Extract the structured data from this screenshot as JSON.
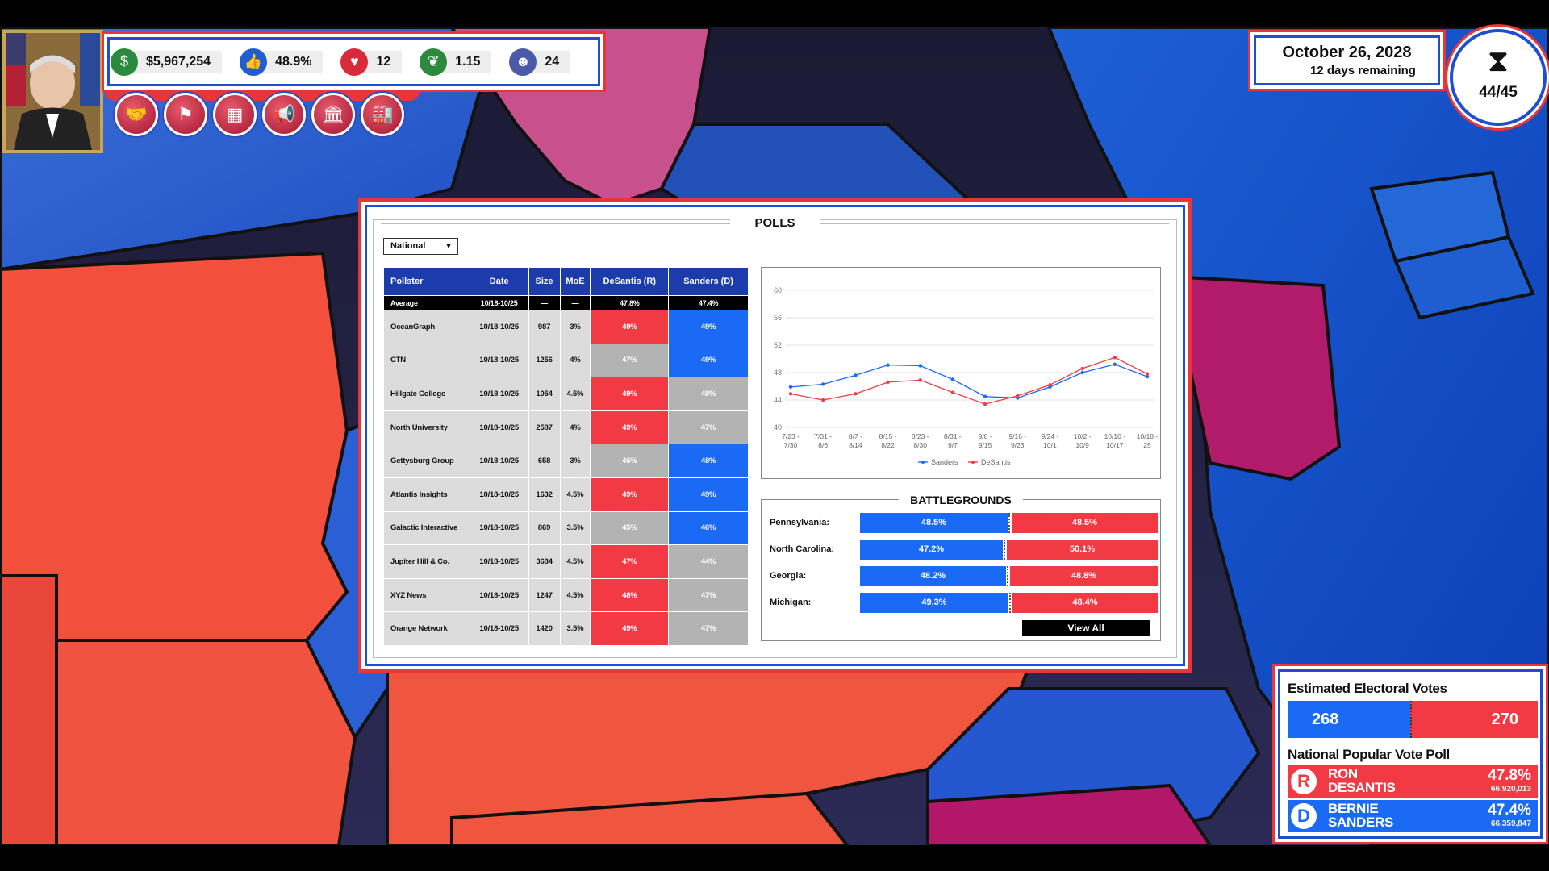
{
  "stats": {
    "money": "$5,967,254",
    "approval": "48.9%",
    "health": "12",
    "momentum": "1.15",
    "staff": "24"
  },
  "icons": {
    "money": "money-bag-icon",
    "approval": "thumbs-up-icon",
    "health": "heart-rate-icon",
    "momentum": "chili-pepper-icon",
    "staff": "people-icon",
    "actions": [
      "handshake-icon",
      "flags-icon",
      "calendar-icon",
      "megaphone-icon",
      "capitol-icon",
      "factory-icon"
    ],
    "timer": "hourglass-icon"
  },
  "date": {
    "main": "October 26, 2028",
    "sub": "12 days remaining"
  },
  "timer": {
    "value": "44/45"
  },
  "polls": {
    "title": "POLLS",
    "region": "National",
    "columns": [
      "Pollster",
      "Date",
      "Size",
      "MoE",
      "DeSantis (R)",
      "Sanders (D)"
    ],
    "average": {
      "pollster": "Average",
      "date": "10/18-10/25",
      "size": "—",
      "moe": "—",
      "r": "47.8%",
      "d": "47.4%"
    },
    "rows": [
      {
        "pollster": "OceanGraph",
        "date": "10/18-10/25",
        "size": "987",
        "moe": "3%",
        "r": "49%",
        "d": "49%",
        "rc": "r",
        "dc": "b"
      },
      {
        "pollster": "CTN",
        "date": "10/18-10/25",
        "size": "1256",
        "moe": "4%",
        "r": "47%",
        "d": "49%",
        "rc": "g",
        "dc": "b"
      },
      {
        "pollster": "Hillgate College",
        "date": "10/18-10/25",
        "size": "1054",
        "moe": "4.5%",
        "r": "49%",
        "d": "48%",
        "rc": "r",
        "dc": "g"
      },
      {
        "pollster": "North University",
        "date": "10/18-10/25",
        "size": "2587",
        "moe": "4%",
        "r": "49%",
        "d": "47%",
        "rc": "r",
        "dc": "g"
      },
      {
        "pollster": "Gettysburg Group",
        "date": "10/18-10/25",
        "size": "658",
        "moe": "3%",
        "r": "46%",
        "d": "48%",
        "rc": "g",
        "dc": "b"
      },
      {
        "pollster": "Atlantis Insights",
        "date": "10/18-10/25",
        "size": "1632",
        "moe": "4.5%",
        "r": "49%",
        "d": "49%",
        "rc": "r",
        "dc": "b"
      },
      {
        "pollster": "Galactic Interactive",
        "date": "10/18-10/25",
        "size": "869",
        "moe": "3.5%",
        "r": "45%",
        "d": "46%",
        "rc": "g",
        "dc": "b"
      },
      {
        "pollster": "Jupiter Hill & Co.",
        "date": "10/18-10/25",
        "size": "3684",
        "moe": "4.5%",
        "r": "47%",
        "d": "44%",
        "rc": "r",
        "dc": "g"
      },
      {
        "pollster": "XYZ News",
        "date": "10/18-10/25",
        "size": "1247",
        "moe": "4.5%",
        "r": "48%",
        "d": "47%",
        "rc": "r",
        "dc": "g"
      },
      {
        "pollster": "Orange Network",
        "date": "10/18-10/25",
        "size": "1420",
        "moe": "3.5%",
        "r": "49%",
        "d": "47%",
        "rc": "r",
        "dc": "g"
      }
    ]
  },
  "chart_data": {
    "type": "line",
    "x": [
      "7/23 - 7/30",
      "7/31 - 8/6",
      "8/7 - 8/14",
      "8/15 - 8/22",
      "8/23 - 8/30",
      "8/31 - 9/7",
      "9/8 - 9/15",
      "9/16 - 9/23",
      "9/24 - 10/1",
      "10/2 - 10/9",
      "10/10 - 10/17",
      "10/18 - 25"
    ],
    "series": [
      {
        "name": "Sanders",
        "color": "#1a6af5",
        "values": [
          45.9,
          46.3,
          47.6,
          49.1,
          49.0,
          47.0,
          44.5,
          44.3,
          45.9,
          48.0,
          49.2,
          47.4
        ]
      },
      {
        "name": "DeSantis",
        "color": "#f23a45",
        "values": [
          44.9,
          44.0,
          44.9,
          46.6,
          46.9,
          45.1,
          43.4,
          44.6,
          46.2,
          48.6,
          50.2,
          47.8
        ]
      }
    ],
    "yticks": [
      40,
      44,
      48,
      52,
      56,
      60
    ],
    "ylim": [
      40,
      60
    ],
    "grid": true,
    "legend": "bottom"
  },
  "battlegrounds": {
    "title": "BATTLEGROUNDS",
    "states": [
      {
        "name": "Pennsylvania:",
        "d": "48.5%",
        "r": "48.5%",
        "dshare": 0.5
      },
      {
        "name": "North Carolina:",
        "d": "47.2%",
        "r": "50.1%",
        "dshare": 0.485
      },
      {
        "name": "Georgia:",
        "d": "48.2%",
        "r": "48.8%",
        "dshare": 0.497
      },
      {
        "name": "Michigan:",
        "d": "49.3%",
        "r": "48.4%",
        "dshare": 0.505
      }
    ],
    "view_all": "View All"
  },
  "electoral": {
    "title": "Estimated Electoral Votes",
    "d": "268",
    "r": "270",
    "npv_title": "National Popular Vote Poll"
  },
  "candidates": [
    {
      "badge": "R",
      "first": "RON",
      "last": "DESANTIS",
      "pct": "47.8%",
      "votes": "66,920,013",
      "color": "#f23a45"
    },
    {
      "badge": "D",
      "first": "BERNIE",
      "last": "SANDERS",
      "pct": "47.4%",
      "votes": "66,359,847",
      "color": "#1a6af5"
    }
  ],
  "colors": {
    "republican": "#f23a45",
    "democrat": "#1a6af5",
    "frame_red": "#e8353a",
    "frame_blue": "#1f4fd1"
  }
}
